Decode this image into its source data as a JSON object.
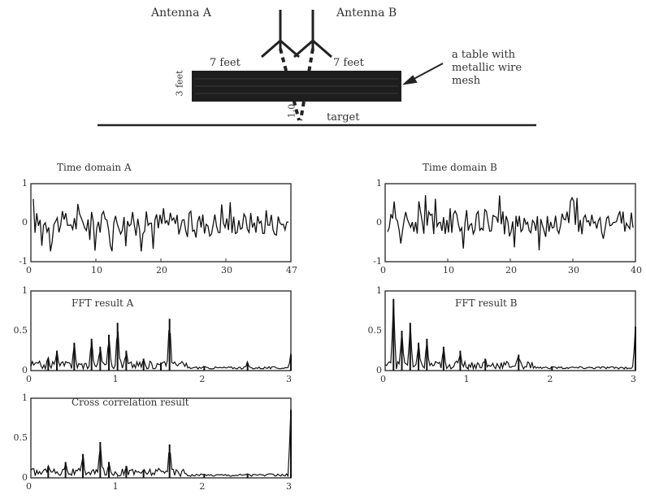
{
  "diagram": {
    "antenna_a_label": "Antenna A",
    "antenna_b_label": "Antenna B",
    "dist_a_label": "7 feet",
    "dist_b_label": "7 feet",
    "height_label": "3 feet",
    "depth_label": "1.0",
    "target_label": "target",
    "callout_label_line1": "a table with",
    "callout_label_line2": "metallic wire",
    "callout_label_line3": "mesh"
  },
  "chart_data": [
    {
      "id": "time_a",
      "type": "line",
      "title": "Time domain A",
      "xlim": [
        0,
        47
      ],
      "ylim": [
        -1,
        1
      ],
      "xticks": [
        "0",
        "10",
        "20",
        "30",
        "47"
      ],
      "yticks": [
        "1",
        "0",
        "-1"
      ]
    },
    {
      "id": "time_b",
      "type": "line",
      "title": "Time domain B",
      "xlim": [
        0,
        40
      ],
      "ylim": [
        -1,
        1
      ],
      "xticks": [
        "0",
        "10",
        "20",
        "30",
        "40"
      ],
      "yticks": [
        "1",
        "0",
        "-1"
      ]
    },
    {
      "id": "fft_a",
      "type": "line",
      "title": "FFT result A",
      "xlim": [
        0,
        3
      ],
      "ylim": [
        0,
        1
      ],
      "xticks": [
        "0",
        "1",
        "2",
        "3"
      ],
      "yticks": [
        "1",
        "0.5",
        "0"
      ],
      "peaks": [
        [
          0.2,
          0.15
        ],
        [
          0.3,
          0.25
        ],
        [
          0.5,
          0.35
        ],
        [
          0.7,
          0.4
        ],
        [
          0.8,
          0.3
        ],
        [
          0.9,
          0.45
        ],
        [
          1.0,
          0.6
        ],
        [
          1.1,
          0.25
        ],
        [
          1.3,
          0.15
        ],
        [
          1.5,
          0.1
        ],
        [
          1.6,
          0.65
        ],
        [
          2.0,
          0.05
        ],
        [
          2.5,
          0.1
        ],
        [
          3.0,
          0.2
        ]
      ]
    },
    {
      "id": "fft_b",
      "type": "line",
      "title": "FFT result B",
      "xlim": [
        0,
        3
      ],
      "ylim": [
        0,
        1
      ],
      "xticks": [
        "0",
        "1",
        "2",
        "3"
      ],
      "yticks": [
        "1",
        "0.5",
        "0"
      ],
      "peaks": [
        [
          0.1,
          0.9
        ],
        [
          0.2,
          0.5
        ],
        [
          0.3,
          0.6
        ],
        [
          0.4,
          0.35
        ],
        [
          0.5,
          0.4
        ],
        [
          0.7,
          0.3
        ],
        [
          0.9,
          0.25
        ],
        [
          1.2,
          0.15
        ],
        [
          1.6,
          0.2
        ],
        [
          2.0,
          0.05
        ],
        [
          3.0,
          0.55
        ]
      ]
    },
    {
      "id": "xcorr",
      "type": "line",
      "title": "Cross correlation result",
      "xlim": [
        0,
        3
      ],
      "ylim": [
        0,
        1
      ],
      "xticks": [
        "0",
        "1",
        "2",
        "3"
      ],
      "yticks": [
        "1",
        "0.5",
        "0"
      ],
      "peaks": [
        [
          0.2,
          0.15
        ],
        [
          0.4,
          0.2
        ],
        [
          0.6,
          0.3
        ],
        [
          0.8,
          0.45
        ],
        [
          0.9,
          0.2
        ],
        [
          1.1,
          0.15
        ],
        [
          1.3,
          0.1
        ],
        [
          1.6,
          0.42
        ],
        [
          2.0,
          0.05
        ],
        [
          2.5,
          0.05
        ],
        [
          3.0,
          0.85
        ]
      ]
    }
  ]
}
